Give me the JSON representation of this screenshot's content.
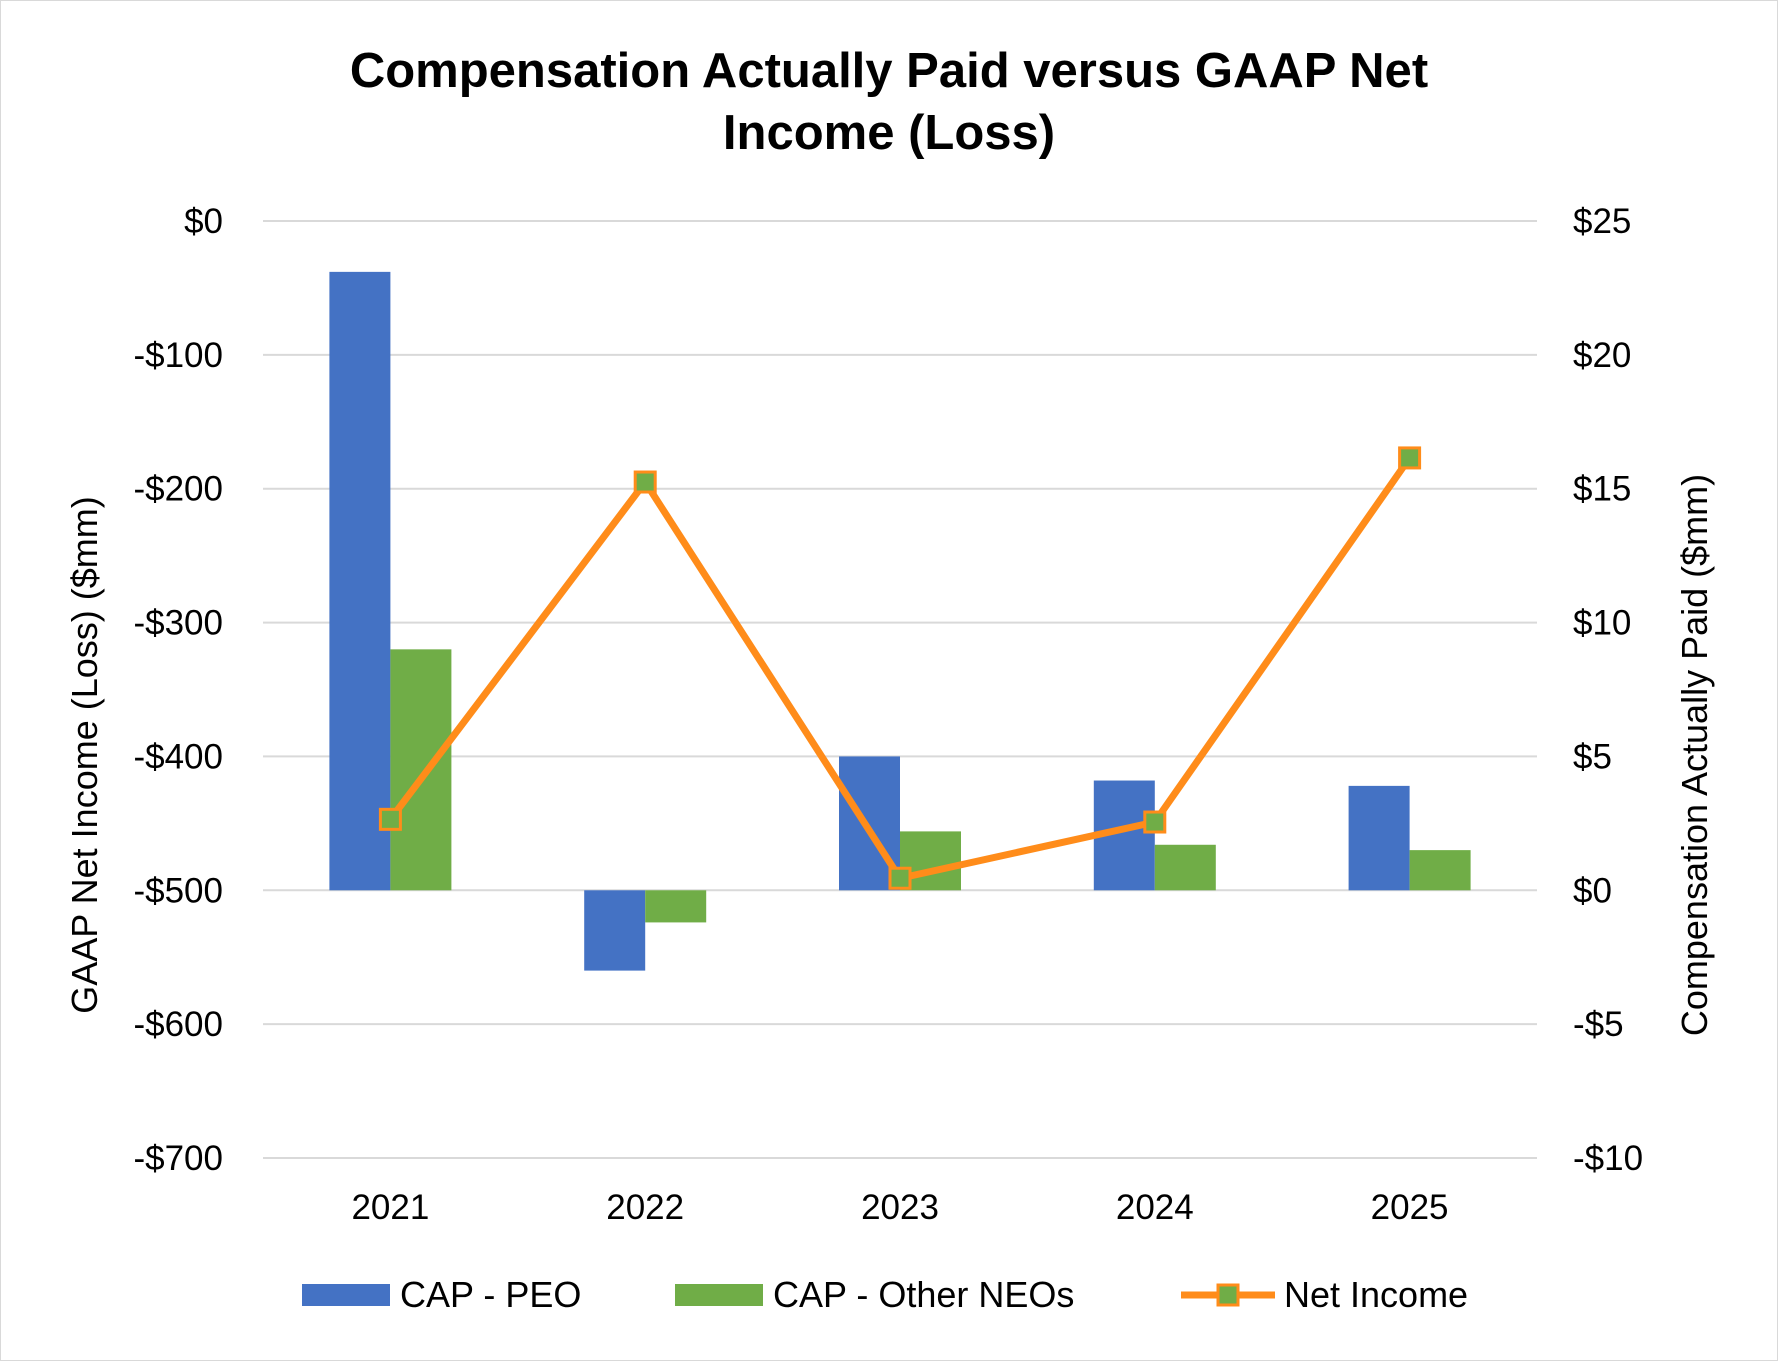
{
  "chart_data": {
    "type": "bar",
    "title_lines": [
      "Compensation Actually Paid versus GAAP Net",
      "Income (Loss)"
    ],
    "categories": [
      "2021",
      "2022",
      "2023",
      "2024",
      "2025"
    ],
    "left_axis": {
      "label": "GAAP Net Income (Loss) ($mm)",
      "range": [
        -700,
        0
      ],
      "ticks": [
        0,
        -100,
        -200,
        -300,
        -400,
        -500,
        -600,
        -700
      ],
      "tick_labels": [
        "$0",
        "-$100",
        "-$200",
        "-$300",
        "-$400",
        "-$500",
        "-$600",
        "-$700"
      ]
    },
    "right_axis": {
      "label": "Compensation Actually Paid ($mm)",
      "range": [
        -10,
        25
      ],
      "ticks": [
        25,
        20,
        15,
        10,
        5,
        0,
        -5,
        -10
      ],
      "tick_labels": [
        "$25",
        "$20",
        "$15",
        "$10",
        "$5",
        "$0",
        "-$5",
        "-$10"
      ]
    },
    "series": [
      {
        "name": "CAP - PEO",
        "type": "bar",
        "axis": "right",
        "color": "#4472C4",
        "values": [
          23.1,
          -3.0,
          5.0,
          4.1,
          3.9
        ]
      },
      {
        "name": "CAP - Other NEOs",
        "type": "bar",
        "axis": "right",
        "color": "#70AD47",
        "values": [
          9.0,
          -1.2,
          2.2,
          1.7,
          1.5
        ]
      },
      {
        "name": "Net Income",
        "type": "line",
        "axis": "left",
        "color": "#FF8C1A",
        "marker_color": "#70AD47",
        "values": [
          -447,
          -195,
          -491,
          -449,
          -177
        ]
      }
    ],
    "grid": true,
    "legend_position": "bottom"
  }
}
